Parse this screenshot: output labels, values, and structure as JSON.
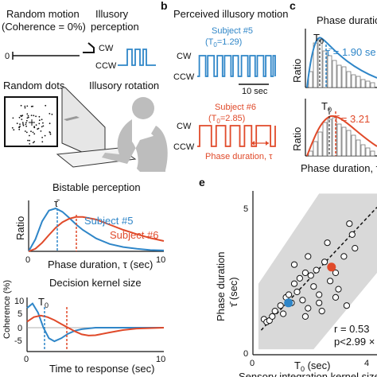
{
  "panel_a": {
    "random_motion": "Random motion",
    "coherence": "(Coherence = 0%)",
    "illusory_perception_1": "Illusory",
    "illusory_perception_2": "perception",
    "axis_zero": "0",
    "cw": "CW",
    "ccw": "CCW",
    "random_dots": "Random dots",
    "illusory_rotation": "Illusory rotation"
  },
  "panel_b": {
    "letter": "b",
    "title": "Perceived illusory motion",
    "subject5": "Subject #5",
    "subject5_t0": "(T",
    "subject5_t0_sub": "0",
    "subject5_t0_val": "=1.29)",
    "subject6": "Subject #6",
    "subject6_t0": "(T",
    "subject6_t0_sub": "0",
    "subject6_t0_val": "=2.85)",
    "cw": "CW",
    "ccw": "CCW",
    "scale": "10 sec",
    "phase_duration": "Phase duration, τ"
  },
  "panel_c": {
    "letter": "c",
    "title": "Phase duratio",
    "ylabel": "Ratio",
    "t0": "T",
    "t0_sub": "0",
    "tau_top": "τ̄ = 1.90 se",
    "tau_bottom": "τ̄ = 3.21",
    "xlabel": "Phase duration, τ"
  },
  "bistable": {
    "title": "Bistable perception",
    "ylabel": "Ratio",
    "tau_bar": "τ̄",
    "subject5": "Subject #5",
    "subject6": "Subject #6",
    "xlabel": "Phase duration, τ (sec)",
    "x_ticks": [
      "0",
      "10"
    ]
  },
  "kernel": {
    "title": "Decision kernel size",
    "t0": "T",
    "t0_sub": "0",
    "ylabel": "Coherence (%)",
    "y_ticks": [
      "10",
      "5",
      "0",
      "-5"
    ],
    "x_ticks": [
      "0",
      "10"
    ],
    "xlabel": "Time to response (sec)"
  },
  "panel_e": {
    "letter": "e",
    "ylabel_1": "Phase duration",
    "ylabel_2": "τ̄ (sec)",
    "xlabel": "T",
    "xlabel_sub": "0",
    "xlabel_unit": " (sec)",
    "bottom_label": "Sensory integration kernel size",
    "x_ticks": [
      "0",
      "4"
    ],
    "y_ticks": [
      "0",
      "5"
    ],
    "r_text": "r = 0.53",
    "p_text": "p<2.99 ×",
    "colors": {
      "blue": "#2f86c8",
      "red": "#e04a2a",
      "band": "#d9d9d9"
    }
  },
  "chart_data": [
    {
      "type": "line",
      "title": "Bistable perception",
      "xlabel": "Phase duration, τ (sec)",
      "ylabel": "Ratio",
      "xlim": [
        0,
        10
      ],
      "series": [
        {
          "name": "Subject #5",
          "color": "#2f86c8",
          "x": [
            0,
            0.5,
            1,
            1.5,
            2,
            2.5,
            3,
            3.5,
            4,
            5,
            6,
            7,
            8,
            9,
            10
          ],
          "y": [
            0,
            0.28,
            0.7,
            0.95,
            1.0,
            0.92,
            0.78,
            0.63,
            0.5,
            0.3,
            0.17,
            0.1,
            0.06,
            0.03,
            0.02
          ]
        },
        {
          "name": "Subject #6",
          "color": "#e04a2a",
          "x": [
            0,
            0.5,
            1,
            1.5,
            2,
            2.5,
            3,
            3.5,
            4,
            5,
            6,
            7,
            8,
            9,
            10
          ],
          "y": [
            0,
            0.06,
            0.2,
            0.38,
            0.55,
            0.68,
            0.76,
            0.8,
            0.8,
            0.74,
            0.62,
            0.5,
            0.4,
            0.31,
            0.24
          ]
        }
      ]
    },
    {
      "type": "line",
      "title": "Decision kernel size",
      "xlabel": "Time to response (sec)",
      "ylabel": "Coherence (%)",
      "xlim": [
        0,
        10
      ],
      "ylim": [
        -6,
        11
      ],
      "series": [
        {
          "name": "Subject #5",
          "color": "#2f86c8",
          "x": [
            0,
            0.4,
            0.8,
            1.2,
            1.6,
            2.0,
            2.5,
            3.0,
            3.5,
            4.0,
            5,
            6,
            7,
            8,
            10
          ],
          "y": [
            6.5,
            8.0,
            5.0,
            0.0,
            -3.5,
            -4.5,
            -3.5,
            -2.0,
            -1.0,
            -0.5,
            0,
            0,
            0,
            0,
            0
          ]
        },
        {
          "name": "Subject #6",
          "color": "#e04a2a",
          "x": [
            0,
            0.5,
            1.0,
            1.5,
            2.0,
            2.5,
            3.0,
            3.5,
            4.0,
            4.5,
            5,
            6,
            7,
            8,
            10
          ],
          "y": [
            2.0,
            3.5,
            4.0,
            3.5,
            2.5,
            1.2,
            0,
            -1.2,
            -2.2,
            -2.6,
            -2.5,
            -1.6,
            -0.8,
            -0.3,
            0
          ]
        }
      ],
      "markers": [
        {
          "name": "T0 subject #5",
          "x": 1.29,
          "color": "#2f86c8"
        },
        {
          "name": "T0 subject #6",
          "x": 2.85,
          "color": "#e04a2a"
        }
      ]
    },
    {
      "type": "scatter",
      "xlabel": "T0 (sec)",
      "ylabel": "Phase duration τ̄ (sec)",
      "xlim": [
        0,
        4.5
      ],
      "ylim": [
        0,
        6
      ],
      "annotations": [
        "r = 0.53",
        "p<2.99 ×"
      ],
      "points": [
        {
          "x": 0.4,
          "y": 1.3
        },
        {
          "x": 0.5,
          "y": 1.2
        },
        {
          "x": 0.6,
          "y": 1.25
        },
        {
          "x": 0.7,
          "y": 1.4
        },
        {
          "x": 0.8,
          "y": 1.6
        },
        {
          "x": 1.0,
          "y": 1.8
        },
        {
          "x": 1.1,
          "y": 1.5
        },
        {
          "x": 1.2,
          "y": 2.1
        },
        {
          "x": 1.3,
          "y": 2.2
        },
        {
          "x": 1.4,
          "y": 1.9
        },
        {
          "x": 1.5,
          "y": 2.6
        },
        {
          "x": 1.6,
          "y": 2.3
        },
        {
          "x": 1.7,
          "y": 2.8
        },
        {
          "x": 1.8,
          "y": 2.0
        },
        {
          "x": 1.9,
          "y": 3.0
        },
        {
          "x": 2.0,
          "y": 1.7
        },
        {
          "x": 2.1,
          "y": 2.9
        },
        {
          "x": 2.2,
          "y": 2.5
        },
        {
          "x": 2.3,
          "y": 3.1
        },
        {
          "x": 2.4,
          "y": 2.2
        },
        {
          "x": 2.5,
          "y": 1.6
        },
        {
          "x": 2.6,
          "y": 3.4
        },
        {
          "x": 2.8,
          "y": 2.7
        },
        {
          "x": 3.0,
          "y": 3.0
        },
        {
          "x": 3.1,
          "y": 2.4
        },
        {
          "x": 3.3,
          "y": 3.6
        },
        {
          "x": 3.5,
          "y": 4.8
        },
        {
          "x": 3.6,
          "y": 4.4
        },
        {
          "x": 3.7,
          "y": 3.9
        },
        {
          "x": 1.5,
          "y": 3.3
        },
        {
          "x": 2.0,
          "y": 3.6
        },
        {
          "x": 2.7,
          "y": 4.1
        },
        {
          "x": 3.0,
          "y": 2.1
        },
        {
          "x": 3.4,
          "y": 1.8
        },
        {
          "x": 1.9,
          "y": 1.4
        },
        {
          "x": 2.4,
          "y": 1.9
        }
      ],
      "highlight": [
        {
          "name": "Subject #5",
          "x": 1.29,
          "y": 1.9,
          "color": "#2f86c8"
        },
        {
          "name": "Subject #6",
          "x": 2.85,
          "y": 3.21,
          "color": "#e04a2a"
        }
      ],
      "fit_line": {
        "x": [
          0.3,
          4.5
        ],
        "y": [
          0.9,
          5.4
        ]
      }
    }
  ]
}
